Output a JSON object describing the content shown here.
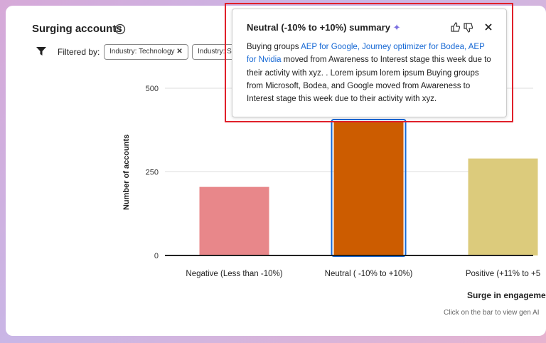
{
  "card": {
    "title": "Surging accounts",
    "filter_label": "Filtered by:",
    "filters": [
      "Industry: Technology",
      "Industry: Se"
    ]
  },
  "chart_data": {
    "type": "bar",
    "categories": [
      "Negative (Less than -10%)",
      "Neutral ( -10% to +10%)",
      "Positive (+11% to +5"
    ],
    "values": [
      205,
      400,
      290
    ],
    "colors": [
      "#e8878a",
      "#cc5c00",
      "#dccb7c"
    ],
    "selected": 1,
    "ylim": [
      0,
      500
    ],
    "yticks": [
      0,
      250,
      500
    ],
    "grid": true,
    "y_label": "Number of accounts",
    "x_label": "Surge in engageme"
  },
  "footer_note": "Click on the bar to view gen AI",
  "popover": {
    "title": "Neutral (-10% to +10%) summary",
    "body": {
      "lead": "Buying groups ",
      "link": "AEP for Google, Journey optimizer for Bodea, AEP for Nvidia",
      "rest": " moved from Awareness to Interest stage this week due to their activity with xyz. . Lorem ipsum lorem ipsum Buying groups from Microsoft, Bodea, and Google moved from Awareness to Interest stage this week due to their activity with xyz."
    }
  }
}
